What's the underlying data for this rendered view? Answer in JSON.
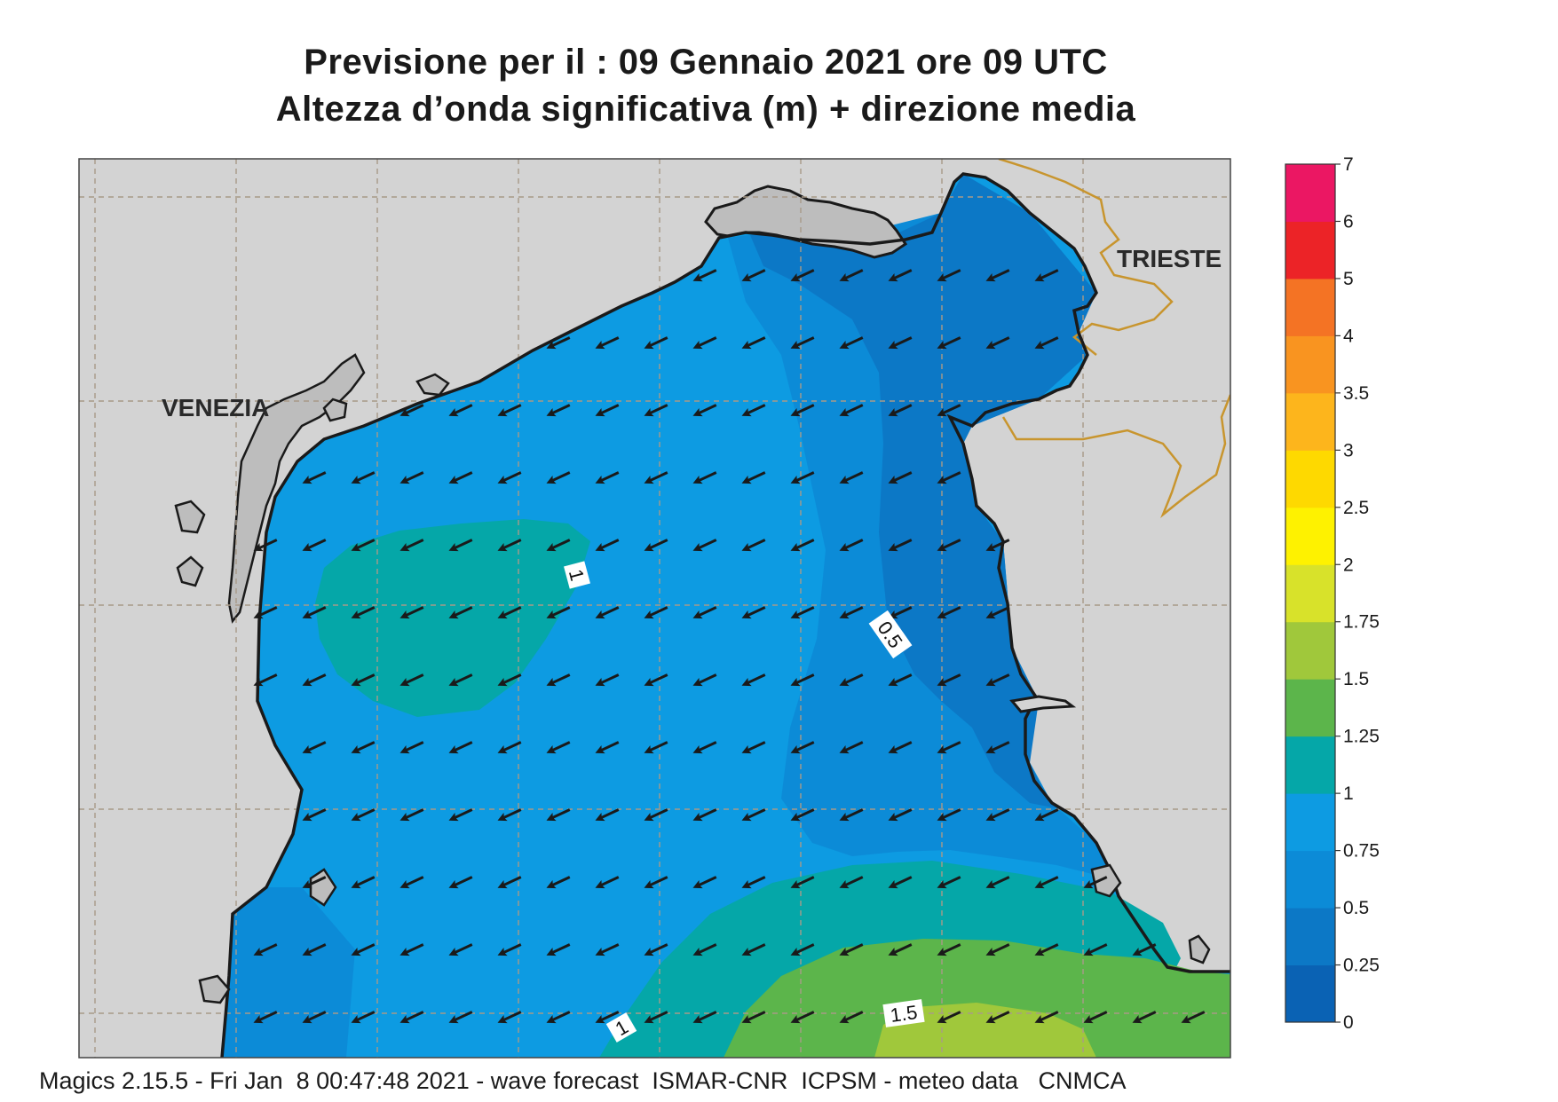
{
  "header": {
    "title_line1": "Previsione per il  :  09  Gennaio  2021   ore 09 UTC",
    "title_line2": "Altezza d’onda significativa (m) + direzione media"
  },
  "footer": {
    "text": "Magics 2.15.5 - Fri Jan  8 00:47:48 2021 - wave forecast  ISMAR-CNR  ICPSM - meteo data   CNMCA"
  },
  "map": {
    "cities": [
      {
        "name": "VENEZIA"
      },
      {
        "name": "TRIESTE"
      }
    ],
    "contour_labels": [
      "1",
      "0.5",
      "1",
      "1.5"
    ],
    "wave_direction": "south-west",
    "colors": {
      "land": "#d3d3d3",
      "border": "#c8952e",
      "graticule": "#a89a88",
      "coast": "#1a1a1a",
      "arrow": "#1a1a1a"
    }
  },
  "colorbar": {
    "ticks": [
      "0",
      "0.25",
      "0.5",
      "0.75",
      "1",
      "1.25",
      "1.5",
      "1.75",
      "2",
      "2.5",
      "3",
      "3.5",
      "4",
      "5",
      "6",
      "7"
    ],
    "colors": [
      "#0a62b4",
      "#0c78c6",
      "#0c8bd7",
      "#0d9be2",
      "#05a7a8",
      "#5cb54b",
      "#a0c83b",
      "#d8e22a",
      "#fef200",
      "#fed900",
      "#fdb51c",
      "#f99420",
      "#f47324",
      "#ec2327",
      "#eb1763"
    ]
  }
}
